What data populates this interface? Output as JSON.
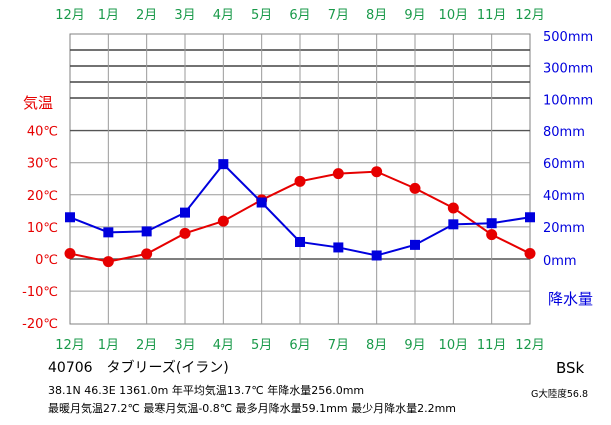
{
  "chart_data": {
    "type": "line",
    "categories": [
      "12月",
      "1月",
      "2月",
      "3月",
      "4月",
      "5月",
      "6月",
      "7月",
      "8月",
      "9月",
      "10月",
      "11月",
      "12月"
    ],
    "temp_axis_label": "気温",
    "precip_axis_label": "降水量",
    "temp_ticks": [
      "40℃",
      "30℃",
      "20℃",
      "10℃",
      "0℃",
      "-10℃",
      "-20℃"
    ],
    "precip_ticks": [
      "500mm",
      "300mm",
      "100mm",
      "80mm",
      "60mm",
      "40mm",
      "20mm",
      "0mm"
    ],
    "temp_range": [
      -20,
      40
    ],
    "precip_linear_range": [
      0,
      80
    ],
    "series": [
      {
        "name": "気温",
        "unit": "℃",
        "color": "#e60000",
        "marker": "circle",
        "values": [
          1.7,
          -0.8,
          1.6,
          8.0,
          11.8,
          18.4,
          24.2,
          26.6,
          27.2,
          22.0,
          15.9,
          7.6,
          1.7
        ]
      },
      {
        "name": "降水量",
        "unit": "mm",
        "color": "#0000dd",
        "marker": "square",
        "values": [
          26.0,
          16.6,
          17.2,
          28.9,
          59.1,
          35.2,
          10.6,
          7.2,
          2.2,
          8.8,
          21.6,
          22.3,
          26.0
        ]
      }
    ],
    "grid": true,
    "colors": {
      "month_labels": "#1a9a4a",
      "temp_axis": "#e60000",
      "precip_axis": "#0000dd"
    }
  },
  "station": {
    "name": "40706　タブリーズ(イラン)",
    "details": "38.1N  46.3E  1361.0m 年平均気温13.7℃ 年降水量256.0mm",
    "extremes": "最暖月気温27.2℃ 最寒月気温-0.8℃ 最多月降水量59.1mm 最少月降水量2.2mm",
    "climate_class": "BSk",
    "aridity_index": "G大陸度56.8"
  }
}
